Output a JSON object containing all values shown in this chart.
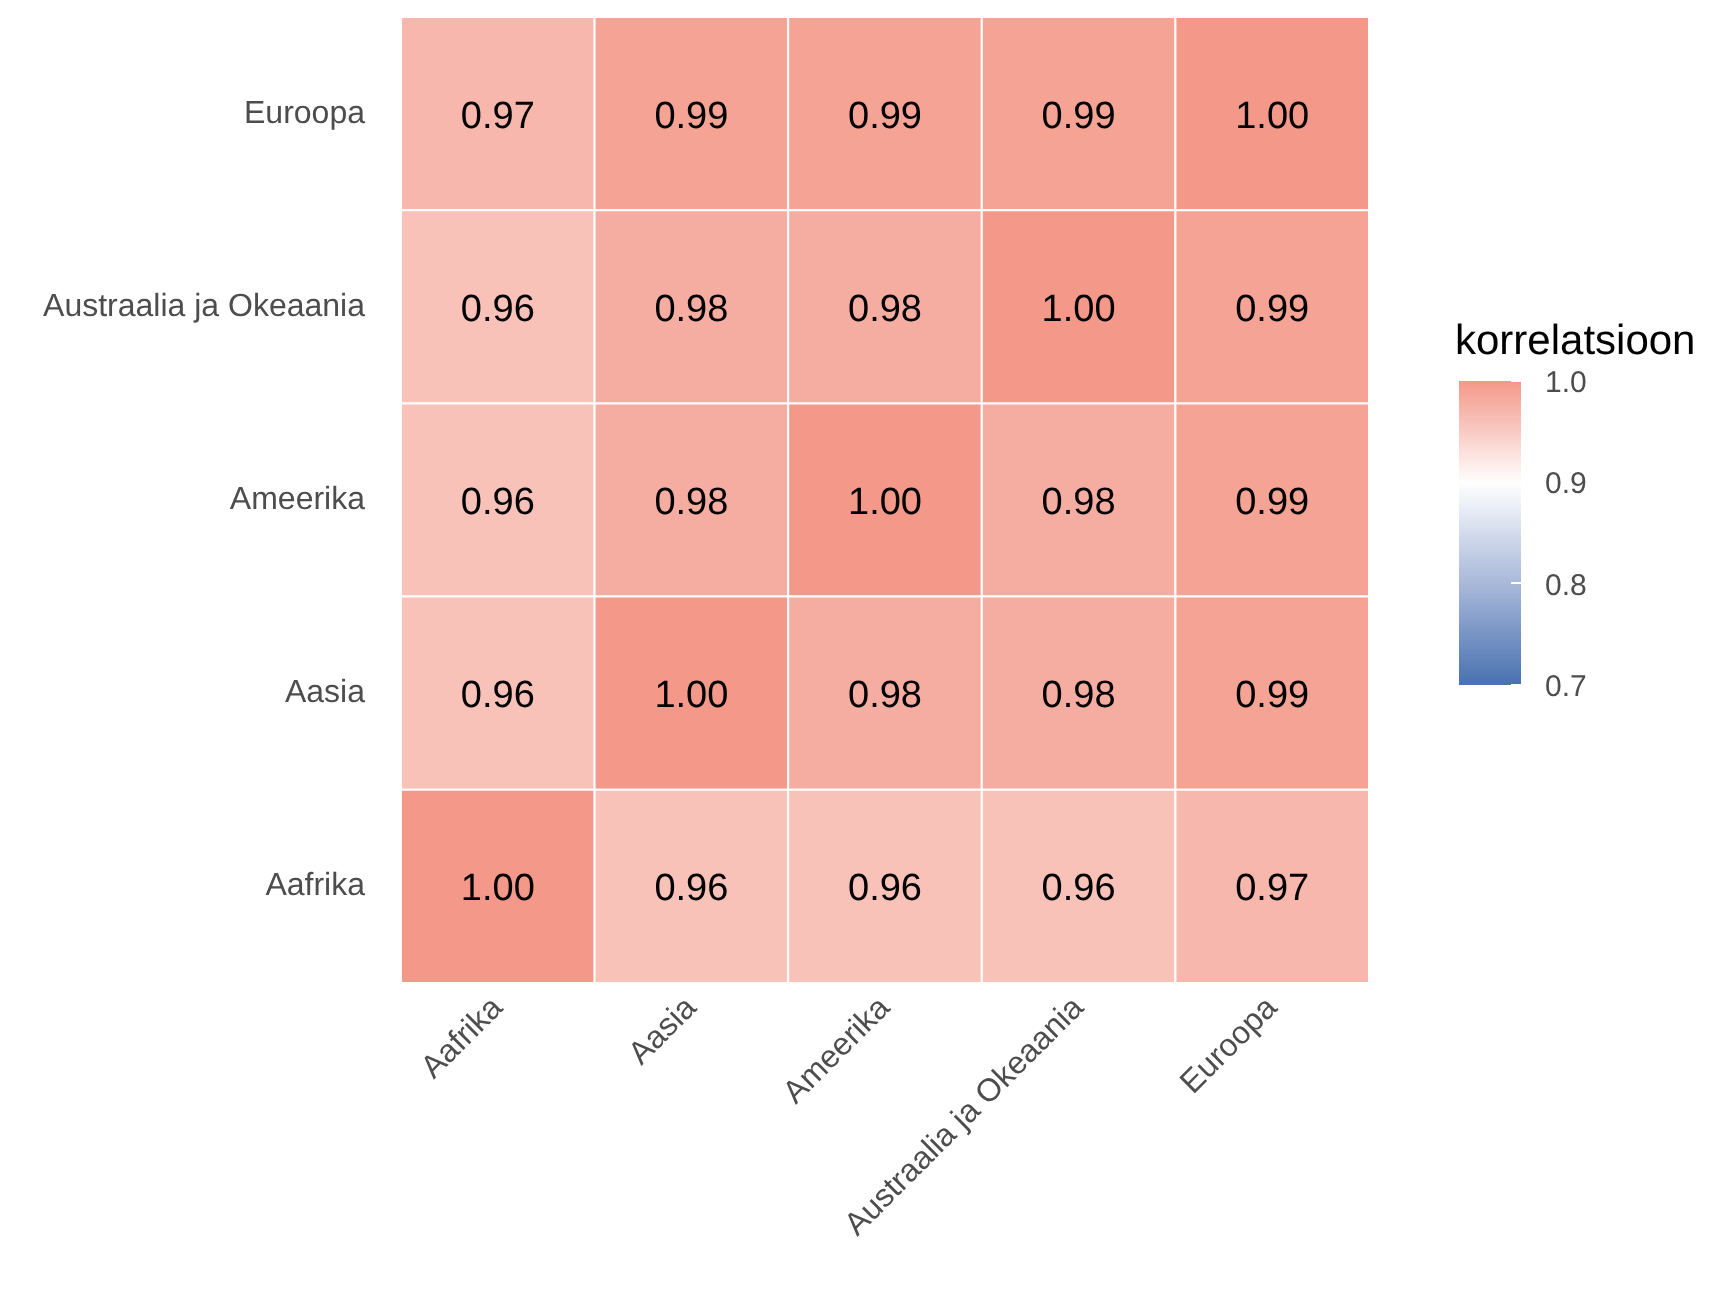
{
  "chart_data": {
    "type": "heatmap",
    "clabel": "korrelatsioon",
    "categories": [
      "Aafrika",
      "Aasia",
      "Ameerika",
      "Austraalia ja Okeaania",
      "Euroopa"
    ],
    "y_categories": [
      "Euroopa",
      "Austraalia ja Okeaania",
      "Ameerika",
      "Aasia",
      "Aafrika"
    ],
    "cells": [
      [
        0.97,
        0.99,
        0.99,
        0.99,
        1.0
      ],
      [
        0.96,
        0.98,
        0.98,
        1.0,
        0.99
      ],
      [
        0.96,
        0.98,
        1.0,
        0.98,
        0.99
      ],
      [
        0.96,
        1.0,
        0.98,
        0.98,
        0.99
      ],
      [
        1.0,
        0.96,
        0.96,
        0.96,
        0.97
      ]
    ],
    "cell_labels": [
      [
        "0.97",
        "0.99",
        "0.99",
        "0.99",
        "1.00"
      ],
      [
        "0.96",
        "0.98",
        "0.98",
        "1.00",
        "0.99"
      ],
      [
        "0.96",
        "0.98",
        "1.00",
        "0.98",
        "0.99"
      ],
      [
        "0.96",
        "1.00",
        "0.98",
        "0.98",
        "0.99"
      ],
      [
        "1.00",
        "0.96",
        "0.96",
        "0.96",
        "0.97"
      ]
    ],
    "clim": [
      0.7,
      1.0
    ],
    "cticks": [
      0.7,
      0.8,
      0.9,
      {
        "value": 1.0,
        "label": "1.0"
      }
    ],
    "colors": [
      "#4a72b1",
      "#a9b9da",
      "#ffffff",
      "#f4998a"
    ]
  }
}
